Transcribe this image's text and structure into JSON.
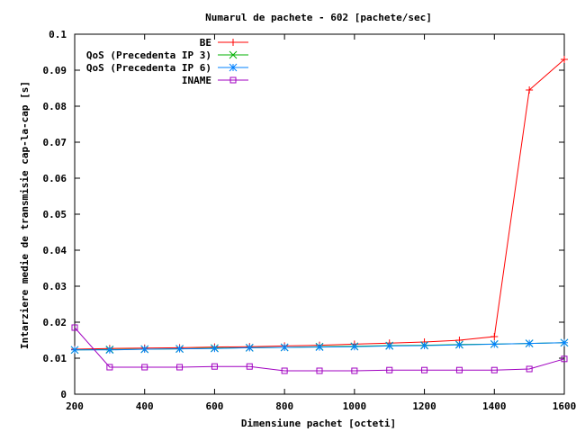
{
  "chart_data": {
    "type": "line",
    "title": "Numarul de pachete - 602 [pachete/sec]",
    "xlabel": "Dimensiune pachet [octeti]",
    "ylabel": "Intarziere medie de transmisie cap-la-cap [s]",
    "xlim": [
      200,
      1600
    ],
    "ylim": [
      0,
      0.1
    ],
    "xticks": [
      200,
      400,
      600,
      800,
      1000,
      1200,
      1400,
      1600
    ],
    "xtick_labels": [
      "200",
      "400",
      "600",
      "800",
      "1000",
      "1200",
      "1400",
      "1600"
    ],
    "yticks": [
      0,
      0.01,
      0.02,
      0.03,
      0.04,
      0.05,
      0.06,
      0.07,
      0.08,
      0.09,
      0.1
    ],
    "ytick_labels": [
      "0",
      "0.01",
      "0.02",
      "0.03",
      "0.04",
      "0.05",
      "0.06",
      "0.07",
      "0.08",
      "0.09",
      "0.1"
    ],
    "grid": false,
    "legend_position": "top-left",
    "x": [
      200,
      300,
      400,
      500,
      600,
      700,
      800,
      900,
      1000,
      1100,
      1200,
      1300,
      1400,
      1500,
      1600
    ],
    "series": [
      {
        "name": "BE",
        "color": "#ff0000",
        "marker": "plus",
        "values": [
          0.0125,
          0.0127,
          0.0128,
          0.0129,
          0.0131,
          0.0132,
          0.0134,
          0.0136,
          0.0139,
          0.0142,
          0.0145,
          0.015,
          0.016,
          0.0845,
          0.093
        ]
      },
      {
        "name": "QoS (Precedenta IP 3)",
        "color": "#00b000",
        "marker": "cross",
        "values": [
          0.0123,
          0.0124,
          0.0125,
          0.0126,
          0.0128,
          0.0129,
          0.013,
          0.0132,
          0.0133,
          0.0135,
          0.0136,
          0.0138,
          0.0139,
          0.0141,
          0.0143
        ]
      },
      {
        "name": "QoS (Precedenta IP 6)",
        "color": "#0080ff",
        "marker": "star",
        "values": [
          0.0123,
          0.0123,
          0.0125,
          0.0126,
          0.0127,
          0.0129,
          0.013,
          0.0131,
          0.0132,
          0.0134,
          0.0135,
          0.0137,
          0.0139,
          0.0141,
          0.0143
        ]
      },
      {
        "name": "INAME",
        "color": "#a000c0",
        "marker": "square",
        "values": [
          0.0185,
          0.0075,
          0.0075,
          0.0075,
          0.0077,
          0.0077,
          0.0065,
          0.0065,
          0.0065,
          0.0067,
          0.0067,
          0.0067,
          0.0067,
          0.007,
          0.0098
        ]
      }
    ]
  }
}
